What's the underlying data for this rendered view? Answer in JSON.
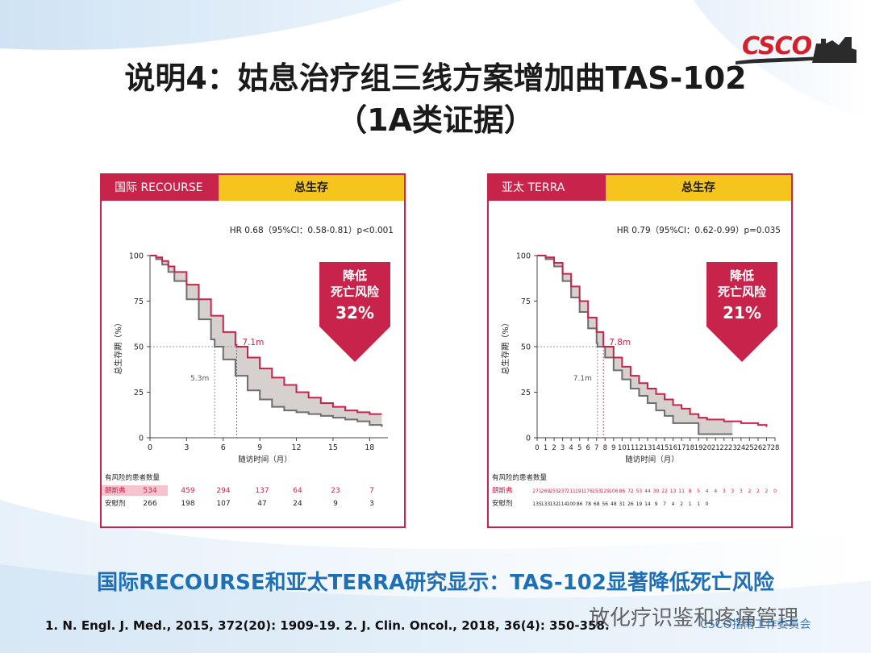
{
  "slide": {
    "title_line1": "说明4：姑息治疗组三线方案增加曲TAS-102",
    "title_line2": "（1A类证据）",
    "summary": "国际RECOURSE和亚太TERRA研究显示：TAS-102显著降低死亡风险",
    "references": "1. N. Engl. J. Med., 2015, 372(20): 1909-19.    2. J. Clin. Oncol., 2018, 36(4): 350-358.",
    "watermark": "放化疗识鉴和疼痛管理",
    "watermark_sub": "CSCO指南工作委员会",
    "logo_text": "CSCO"
  },
  "colors": {
    "accent": "#c8234a",
    "yellow": "#f5c51e",
    "placebo": "#6e6e6e",
    "fill": "#cfc8c6",
    "blue": "#1f6fb5"
  },
  "chart_data": [
    {
      "type": "line",
      "study": "国际 RECOURSE",
      "header": "总生存",
      "hr_text": "HR 0.68（95%CI：0.58-0.81）p<0.001",
      "callout": {
        "line1": "降低",
        "line2": "死亡风险",
        "value": "32%"
      },
      "ylabel": "总生存期（%）",
      "xlabel": "随访时间（月）",
      "xlim": [
        0,
        19.5
      ],
      "ylim": [
        0,
        100
      ],
      "xticks": [
        0,
        3,
        6,
        9,
        12,
        15,
        18
      ],
      "xtick_labels": [
        "0",
        "3",
        "6",
        "9",
        "12",
        "15",
        "18"
      ],
      "yticks": [
        0,
        25,
        50,
        75,
        100
      ],
      "median_labels": {
        "treatment": "7.1m",
        "placebo": "5.3m"
      },
      "medians": {
        "treatment": 7.1,
        "placebo": 5.3
      },
      "series": [
        {
          "name": "朗斯弗",
          "color": "#c8234a",
          "x": [
            0,
            0.5,
            1,
            1.5,
            2,
            3,
            4,
            5,
            6,
            7,
            7.1,
            8,
            9,
            10,
            11,
            12,
            13,
            14,
            15,
            16,
            17,
            18,
            19
          ],
          "y": [
            100,
            99,
            97,
            94,
            91,
            84,
            76,
            67,
            58,
            51,
            50,
            44,
            38,
            33,
            29,
            25,
            22,
            19,
            17,
            15,
            14,
            13,
            13
          ]
        },
        {
          "name": "安慰剂",
          "color": "#6e6e6e",
          "x": [
            0,
            0.5,
            1,
            1.5,
            2,
            3,
            4,
            5,
            5.3,
            6,
            7,
            8,
            9,
            10,
            11,
            12,
            13,
            14,
            15,
            16,
            17,
            18,
            19
          ],
          "y": [
            100,
            98,
            95,
            91,
            86,
            76,
            65,
            54,
            50,
            43,
            34,
            26,
            21,
            17,
            15,
            14,
            13,
            12,
            11,
            10,
            9,
            7,
            6
          ]
        }
      ],
      "risk_table": {
        "title": "有风险的患者数量",
        "rows": [
          {
            "label": "朗斯弗",
            "values": [
              "534",
              "459",
              "294",
              "137",
              "64",
              "23",
              "7"
            ]
          },
          {
            "label": "安慰剂",
            "values": [
              "266",
              "198",
              "107",
              "47",
              "24",
              "9",
              "3"
            ]
          }
        ]
      }
    },
    {
      "type": "line",
      "study": "亚太 TERRA",
      "header": "总生存",
      "hr_text": "HR 0.79（95%CI：0.62-0.99）p=0.035",
      "callout": {
        "line1": "降低",
        "line2": "死亡风险",
        "value": "21%"
      },
      "ylabel": "总生存期（%）",
      "xlabel": "随访时间（月）",
      "xlim": [
        0,
        28
      ],
      "ylim": [
        0,
        100
      ],
      "xticks": [
        0,
        1,
        2,
        3,
        4,
        5,
        6,
        7,
        8,
        9,
        10,
        11,
        12,
        13,
        14,
        15,
        16,
        17,
        18,
        19,
        20,
        21,
        22,
        23,
        24,
        25,
        26,
        27,
        28
      ],
      "xtick_labels": [
        "0",
        "1",
        "2",
        "3",
        "4",
        "5",
        "6",
        "7",
        "8",
        "9",
        "10",
        "11",
        "12",
        "13",
        "14",
        "15",
        "16",
        "17",
        "18",
        "19",
        "20",
        "21",
        "22",
        "23",
        "24",
        "25",
        "26",
        "27",
        "28"
      ],
      "yticks": [
        0,
        25,
        50,
        75,
        100
      ],
      "median_labels": {
        "treatment": "7.8m",
        "placebo": "7.1m"
      },
      "medians": {
        "treatment": 7.8,
        "placebo": 7.1
      },
      "series": [
        {
          "name": "朗斯弗",
          "color": "#c8234a",
          "x": [
            0,
            1,
            2,
            3,
            4,
            5,
            6,
            7,
            7.8,
            9,
            10,
            11,
            12,
            13,
            14,
            15,
            16,
            17,
            18,
            19,
            20,
            22,
            24,
            26,
            27
          ],
          "y": [
            100,
            99,
            96,
            90,
            83,
            75,
            66,
            58,
            50,
            44,
            39,
            34,
            30,
            27,
            24,
            21,
            18,
            16,
            13,
            11,
            10,
            9,
            8,
            7,
            6
          ]
        },
        {
          "name": "安慰剂",
          "color": "#6e6e6e",
          "x": [
            0,
            1,
            2,
            3,
            4,
            5,
            6,
            7,
            7.1,
            8,
            9,
            10,
            11,
            12,
            13,
            14,
            15,
            16,
            17,
            18,
            19,
            20,
            23
          ],
          "y": [
            100,
            98,
            94,
            86,
            77,
            69,
            60,
            52,
            50,
            44,
            37,
            32,
            27,
            23,
            19,
            15,
            12,
            8,
            8,
            8,
            2,
            2,
            2
          ]
        }
      ],
      "risk_table": {
        "title": "有风险的患者数量",
        "rows": [
          {
            "label": "朗斯弗",
            "values": [
              "271",
              "269",
              "255",
              "237",
              "211",
              "191",
              "176",
              "153",
              "129",
              "106",
              "86",
              "72",
              "53",
              "44",
              "30",
              "22",
              "13",
              "11",
              "8",
              "5",
              "4",
              "4",
              "3",
              "3",
              "3",
              "2",
              "2",
              "2",
              "0"
            ]
          },
          {
            "label": "安慰剂",
            "values": [
              "135",
              "133",
              "132",
              "114",
              "100",
              "86",
              "78",
              "68",
              "56",
              "48",
              "31",
              "26",
              "19",
              "14",
              "9",
              "7",
              "4",
              "2",
              "1",
              "1",
              "0"
            ]
          }
        ]
      }
    }
  ]
}
